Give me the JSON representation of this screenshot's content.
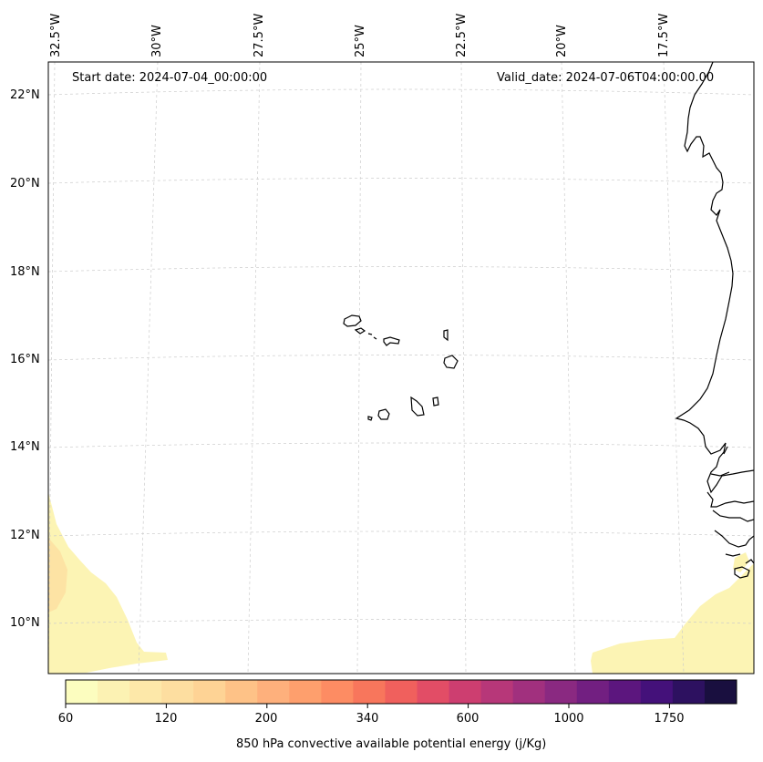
{
  "header": {
    "start_date": "Start date: 2024-07-04_00:00:00",
    "valid_date": "Valid_date: 2024-07-06T04:00:00.00"
  },
  "longitude_labels": [
    "32.5°W",
    "30°W",
    "27.5°W",
    "25°W",
    "22.5°W",
    "20°W",
    "17.5°W"
  ],
  "latitude_labels": [
    "22°N",
    "20°N",
    "18°N",
    "16°N",
    "14°N",
    "12°N",
    "10°N"
  ],
  "colorbar": {
    "label": "850 hPa convective available potential energy (j/Kg)",
    "tick_labels": [
      "60",
      "120",
      "200",
      "340",
      "600",
      "1000",
      "1750"
    ],
    "colors": [
      "#fcfdbf",
      "#fcf2b3",
      "#fde8a9",
      "#fddea0",
      "#fed395",
      "#fec287",
      "#feb07c",
      "#fe9f6d",
      "#fd8c63",
      "#f8765c",
      "#f0605d",
      "#e24d66",
      "#cd3e70",
      "#b73779",
      "#a1307e",
      "#8a2981",
      "#721f81",
      "#5c167e",
      "#44117a",
      "#2d1160",
      "#190f3f"
    ]
  },
  "colors": {
    "coastline": "#000000",
    "gridline": "#c8c8c8",
    "cape_low": "#fcf3b0",
    "cape_mid": "#fde3a4"
  }
}
